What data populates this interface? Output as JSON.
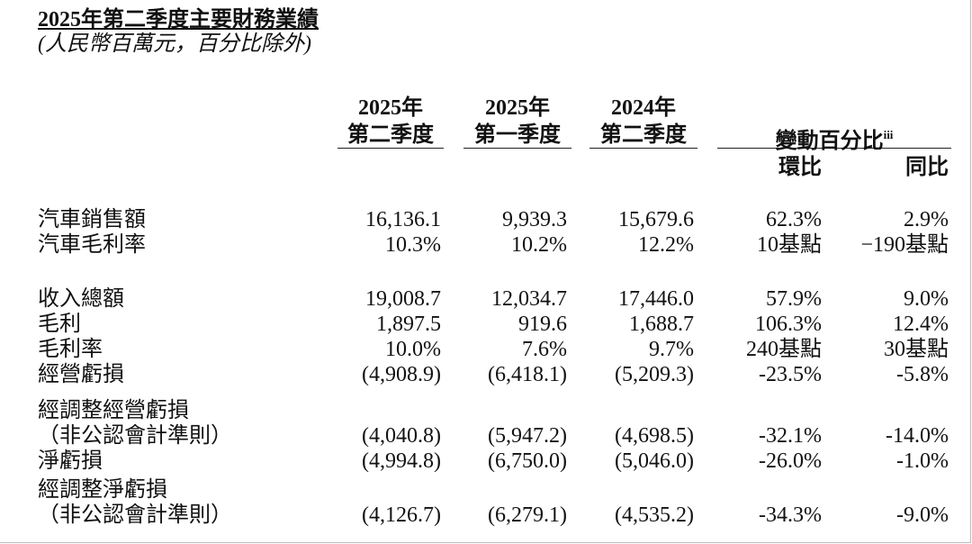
{
  "header": {
    "title": "2025年第二季度主要財務業績",
    "subtitle": "(人民幣百萬元，百分比除外)"
  },
  "table": {
    "columns": [
      {
        "year": "2025年",
        "quarter": "第二季度"
      },
      {
        "year": "2025年",
        "quarter": "第一季度"
      },
      {
        "year": "2024年",
        "quarter": "第二季度"
      }
    ],
    "change_header": {
      "label": "變動百分比",
      "note": "iii",
      "sub": [
        "環比",
        "同比"
      ]
    },
    "rows": [
      {
        "label": [
          "汽車銷售額"
        ],
        "cells": [
          "16,136.1",
          "9,939.3",
          "15,679.6",
          "62.3%",
          "2.9%"
        ]
      },
      {
        "label": [
          "汽車毛利率"
        ],
        "cells": [
          "10.3%",
          "10.2%",
          "12.2%",
          "10基點",
          "−190基點"
        ]
      },
      {
        "label": [
          "收入總額"
        ],
        "cells": [
          "19,008.7",
          "12,034.7",
          "17,446.0",
          "57.9%",
          "9.0%"
        ]
      },
      {
        "label": [
          "毛利"
        ],
        "cells": [
          "1,897.5",
          "919.6",
          "1,688.7",
          "106.3%",
          "12.4%"
        ]
      },
      {
        "label": [
          "毛利率"
        ],
        "cells": [
          "10.0%",
          "7.6%",
          "9.7%",
          "240基點",
          "30基點"
        ]
      },
      {
        "label": [
          "經營虧損"
        ],
        "cells": [
          "(4,908.9)",
          "(6,418.1)",
          "(5,209.3)",
          "-23.5%",
          "-5.8%"
        ]
      },
      {
        "label": [
          "經調整經營虧損",
          "（非公認會計準則）"
        ],
        "cells": [
          "(4,040.8)",
          "(5,947.2)",
          "(4,698.5)",
          "-32.1%",
          "-14.0%"
        ]
      },
      {
        "label": [
          "淨虧損"
        ],
        "cells": [
          "(4,994.8)",
          "(6,750.0)",
          "(5,046.0)",
          "-26.0%",
          "-1.0%"
        ]
      },
      {
        "label": [
          "經調整淨虧損",
          "（非公認會計準則）"
        ],
        "cells": [
          "(4,126.7)",
          "(6,279.1)",
          "(4,535.2)",
          "-34.3%",
          "-9.0%"
        ]
      }
    ]
  }
}
